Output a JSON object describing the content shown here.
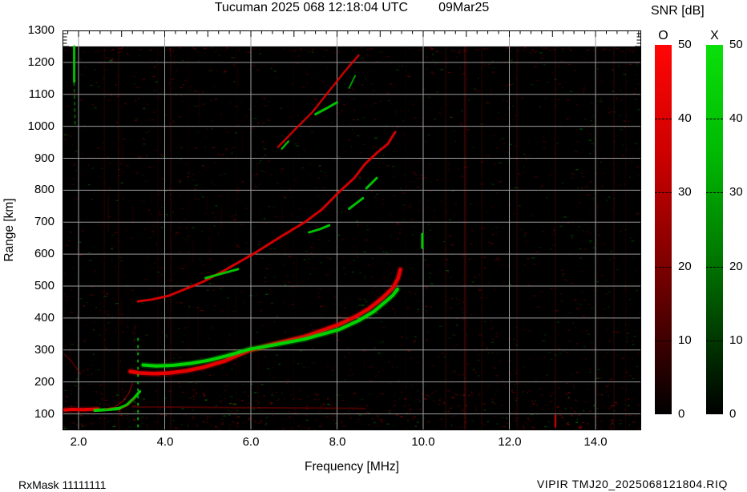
{
  "header": {
    "station_time": "Tucuman 2025 068 12:18:04 UTC",
    "date": "09Mar25"
  },
  "footer": {
    "rxmask": "RxMask 11111111",
    "filename": "VIPIR  TMJ20_2025068121804.RIQ"
  },
  "axes": {
    "x_label": "Frequency [MHz]",
    "y_label": "Range [km]",
    "x_tick_values": [
      2,
      4,
      6,
      8,
      10,
      12,
      14
    ],
    "x_tick_labels": [
      "2.0",
      "4.0",
      "6.0",
      "8.0",
      "10.0",
      "12.0",
      "14.0"
    ],
    "y_tick_values": [
      1300,
      1200,
      1100,
      1000,
      900,
      800,
      700,
      600,
      500,
      400,
      300,
      200,
      100
    ]
  },
  "colorbar": {
    "title": "SNR [dB]",
    "min": 0,
    "max": 50,
    "ticks": [
      50,
      40,
      30,
      20,
      10,
      0
    ],
    "bars": [
      {
        "label": "O",
        "stops": [
          "#ff0606",
          "#cc0000",
          "#7d0000",
          "#250000",
          "#000000"
        ]
      },
      {
        "label": "X",
        "stops": [
          "#0ae00a",
          "#00b803",
          "#007200",
          "#002000",
          "#000000"
        ]
      }
    ]
  },
  "chart_data": {
    "type": "ionogram-heatmap",
    "title": "Tucuman 2025 068 12:18:04 UTC 09Mar25",
    "xlabel": "Frequency [MHz]",
    "ylabel": "Range [km]",
    "f_min": 1.628,
    "f_max": 15.06,
    "r_min": 48.6,
    "r_max": 1300,
    "data_top_range": 1250,
    "x_grid": [
      2,
      4,
      6,
      8,
      10,
      12,
      14
    ],
    "r_grid": [
      100,
      200,
      300,
      400,
      500,
      600,
      700,
      800,
      900,
      1000,
      1100,
      1200
    ],
    "colors": {
      "o_trace": "#e80000",
      "x_trace": "#00d400",
      "grid": "#9c9c9c",
      "rfi": "#c01010",
      "background": "#000000"
    },
    "noise_seed": 42,
    "rfi_streaks": [
      [
        2.6,
        2,
        0.1
      ],
      [
        2.93,
        2,
        0.12
      ],
      [
        3.84,
        1,
        0.1
      ],
      [
        4.14,
        2,
        0.14
      ],
      [
        4.55,
        1,
        0.08
      ],
      [
        5.66,
        1,
        0.08
      ],
      [
        7.0,
        1,
        0.07
      ],
      [
        9.6,
        1,
        0.08
      ],
      [
        10.52,
        2,
        0.12
      ],
      [
        10.97,
        3,
        0.22
      ],
      [
        11.36,
        2,
        0.1
      ],
      [
        12.18,
        2,
        0.12
      ],
      [
        13.07,
        2,
        0.13
      ],
      [
        14.06,
        1,
        0.1
      ],
      [
        14.43,
        2,
        0.12
      ],
      [
        14.7,
        1,
        0.09
      ]
    ],
    "traces": [
      {
        "name": "e-layer-O",
        "c": "O",
        "w": 4,
        "o": 1,
        "glow": true,
        "p": [
          [
            1.63,
            112
          ],
          [
            1.85,
            114
          ],
          [
            2.1,
            113
          ],
          [
            2.45,
            115
          ]
        ]
      },
      {
        "name": "e-layer-X",
        "c": "X",
        "w": 4,
        "o": 0.95,
        "p": [
          [
            2.38,
            111
          ],
          [
            2.65,
            113
          ],
          [
            2.95,
            117
          ]
        ]
      },
      {
        "name": "e-cusp-X",
        "c": "X",
        "w": 3.5,
        "o": 0.95,
        "p": [
          [
            2.95,
            118
          ],
          [
            3.12,
            128
          ],
          [
            3.28,
            148
          ],
          [
            3.42,
            170
          ]
        ]
      },
      {
        "name": "e-cusp-O-a",
        "c": "O",
        "w": 1.5,
        "o": 0.5,
        "p": [
          [
            2.62,
            115
          ],
          [
            2.85,
            122
          ],
          [
            3.05,
            142
          ],
          [
            3.18,
            168
          ],
          [
            3.25,
            195
          ]
        ]
      },
      {
        "name": "e-cusp-O-b",
        "c": "O",
        "w": 1.5,
        "o": 0.4,
        "p": [
          [
            2.95,
            113
          ],
          [
            3.15,
            126
          ],
          [
            3.3,
            150
          ]
        ]
      },
      {
        "name": "e-faint-O",
        "c": "O",
        "w": 2,
        "o": 0.3,
        "p": [
          [
            3.25,
            122
          ],
          [
            4.5,
            121
          ],
          [
            6.0,
            119
          ],
          [
            7.5,
            118
          ],
          [
            8.65,
            117
          ]
        ]
      },
      {
        "name": "hop1-O",
        "c": "O",
        "w": 4.5,
        "o": 1,
        "glow": true,
        "p": [
          [
            3.2,
            233
          ],
          [
            3.42,
            228
          ],
          [
            3.75,
            226
          ],
          [
            4.1,
            228
          ],
          [
            4.5,
            235
          ],
          [
            4.9,
            246
          ],
          [
            5.4,
            266
          ],
          [
            5.95,
            298
          ],
          [
            6.5,
            318
          ],
          [
            7.25,
            342
          ],
          [
            8.05,
            380
          ],
          [
            8.45,
            406
          ],
          [
            8.75,
            430
          ],
          [
            9.05,
            462
          ],
          [
            9.3,
            495
          ],
          [
            9.42,
            525
          ],
          [
            9.47,
            552
          ]
        ]
      },
      {
        "name": "hop1-X",
        "c": "X",
        "w": 4,
        "o": 1,
        "glow": true,
        "p": [
          [
            3.5,
            253
          ],
          [
            3.8,
            250
          ],
          [
            4.2,
            252
          ],
          [
            4.6,
            258
          ],
          [
            5.0,
            267
          ],
          [
            5.45,
            282
          ],
          [
            5.95,
            302
          ],
          [
            6.5,
            315
          ],
          [
            7.25,
            334
          ],
          [
            8.05,
            364
          ],
          [
            8.5,
            392
          ],
          [
            8.85,
            420
          ],
          [
            9.1,
            448
          ],
          [
            9.3,
            472
          ],
          [
            9.4,
            490
          ]
        ]
      },
      {
        "name": "hop2-O",
        "c": "O",
        "w": 3,
        "o": 0.9,
        "p": [
          [
            3.38,
            452
          ],
          [
            3.7,
            458
          ],
          [
            4.1,
            470
          ],
          [
            4.5,
            492
          ],
          [
            4.9,
            514
          ],
          [
            5.4,
            550
          ],
          [
            6.05,
            600
          ],
          [
            6.7,
            655
          ],
          [
            7.25,
            700
          ],
          [
            7.65,
            740
          ],
          [
            8.05,
            795
          ],
          [
            8.4,
            838
          ],
          [
            8.65,
            882
          ],
          [
            8.95,
            920
          ],
          [
            9.18,
            945
          ],
          [
            9.35,
            982
          ]
        ]
      },
      {
        "name": "hop2-X-a",
        "c": "X",
        "w": 3,
        "o": 0.9,
        "p": [
          [
            4.95,
            525
          ],
          [
            5.35,
            540
          ],
          [
            5.7,
            553
          ]
        ]
      },
      {
        "name": "hop2-X-b",
        "c": "X",
        "w": 3,
        "o": 0.9,
        "p": [
          [
            7.35,
            668
          ],
          [
            7.6,
            678
          ],
          [
            7.82,
            690
          ]
        ]
      },
      {
        "name": "hop2-X-c",
        "c": "X",
        "w": 3,
        "o": 0.9,
        "p": [
          [
            8.28,
            742
          ],
          [
            8.6,
            775
          ]
        ]
      },
      {
        "name": "hop2-X-d",
        "c": "X",
        "w": 3,
        "o": 0.9,
        "p": [
          [
            8.68,
            806
          ],
          [
            8.92,
            838
          ]
        ]
      },
      {
        "name": "hop3-O",
        "c": "O",
        "w": 2.5,
        "o": 0.85,
        "p": [
          [
            6.63,
            935
          ],
          [
            7.06,
            995
          ],
          [
            7.43,
            1045
          ],
          [
            7.8,
            1108
          ],
          [
            8.17,
            1170
          ],
          [
            8.5,
            1222
          ]
        ]
      },
      {
        "name": "hop3-X-a",
        "c": "X",
        "w": 2.5,
        "o": 0.85,
        "p": [
          [
            6.72,
            930
          ],
          [
            6.87,
            953
          ]
        ]
      },
      {
        "name": "hop3-X-b",
        "c": "X",
        "w": 3,
        "o": 0.9,
        "p": [
          [
            7.5,
            1038
          ],
          [
            7.78,
            1058
          ],
          [
            8.0,
            1075
          ]
        ]
      },
      {
        "name": "hop3-X-c",
        "c": "X",
        "w": 2,
        "o": 0.7,
        "p": [
          [
            8.28,
            1120
          ],
          [
            8.42,
            1158
          ]
        ]
      },
      {
        "name": "vertical-green-interference",
        "c": "X",
        "w": 2,
        "o": 0.8,
        "d": "2,7",
        "p": [
          [
            3.38,
            60
          ],
          [
            3.38,
            345
          ]
        ]
      },
      {
        "name": "green-top-streak",
        "c": "X",
        "w": 3,
        "o": 0.9,
        "p": [
          [
            1.9,
            1250
          ],
          [
            1.9,
            1140
          ]
        ]
      },
      {
        "name": "green-top-tail",
        "c": "X",
        "w": 2,
        "o": 0.4,
        "d": "3,5",
        "p": [
          [
            1.9,
            1135
          ],
          [
            1.92,
            1000
          ]
        ]
      },
      {
        "name": "green-dash-10mhz",
        "c": "X",
        "w": 3,
        "o": 0.95,
        "p": [
          [
            9.98,
            620
          ],
          [
            9.98,
            663
          ]
        ]
      },
      {
        "name": "red-dash-13mhz",
        "c": "O",
        "w": 2.5,
        "o": 0.8,
        "p": [
          [
            13.07,
            60
          ],
          [
            13.07,
            95
          ]
        ]
      },
      {
        "name": "left-diagonal-faint",
        "c": "O",
        "w": 1.5,
        "o": 0.35,
        "p": [
          [
            1.66,
            288
          ],
          [
            1.85,
            262
          ],
          [
            2.05,
            225
          ]
        ]
      }
    ]
  }
}
